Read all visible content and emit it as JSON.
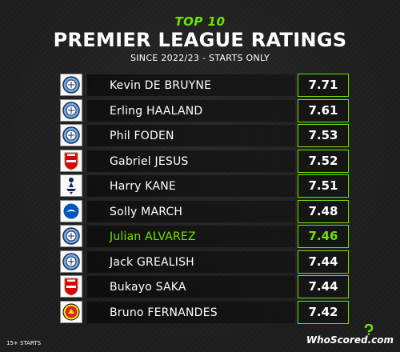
{
  "header": {
    "kicker": "TOP 10",
    "title": "PREMIER LEAGUE RATINGS",
    "subtitle": "SINCE 2022/23 - STARTS ONLY"
  },
  "colors": {
    "accent": "#6ee100",
    "background": "#1d1d1d"
  },
  "rows": [
    {
      "player": "Kevin DE BRUYNE",
      "rating": "7.71",
      "club_icon": "man-city-crest-icon"
    },
    {
      "player": "Erling HAALAND",
      "rating": "7.61",
      "club_icon": "man-city-crest-icon"
    },
    {
      "player": "Phil FODEN",
      "rating": "7.53",
      "club_icon": "man-city-crest-icon"
    },
    {
      "player": "Gabriel JESUS",
      "rating": "7.52",
      "club_icon": "arsenal-crest-icon"
    },
    {
      "player": "Harry KANE",
      "rating": "7.51",
      "club_icon": "tottenham-crest-icon"
    },
    {
      "player": "Solly MARCH",
      "rating": "7.48",
      "club_icon": "brighton-crest-icon"
    },
    {
      "player": "Julian ALVAREZ",
      "rating": "7.46",
      "club_icon": "man-city-crest-icon",
      "highlight": true
    },
    {
      "player": "Jack GREALISH",
      "rating": "7.44",
      "club_icon": "man-city-crest-icon"
    },
    {
      "player": "Bukayo SAKA",
      "rating": "7.44",
      "club_icon": "arsenal-crest-icon"
    },
    {
      "player": "Bruno FERNANDES",
      "rating": "7.42",
      "club_icon": "man-united-crest-icon"
    }
  ],
  "footer": {
    "note": "15+ STARTS",
    "brand": "WhoScored.com"
  }
}
